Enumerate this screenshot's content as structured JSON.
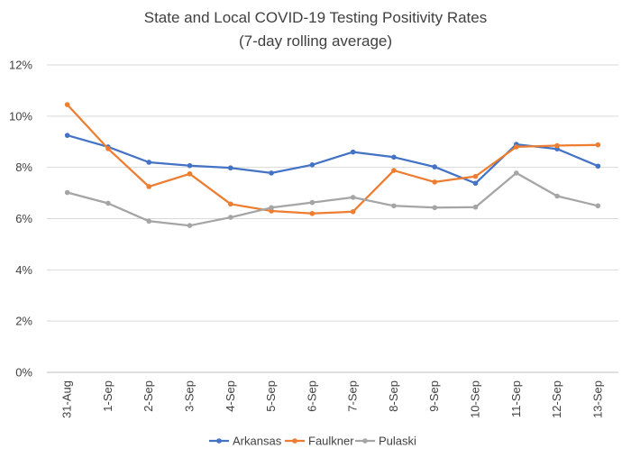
{
  "chart_data": {
    "type": "line",
    "title_lines": [
      "State and Local COVID-19 Testing Positivity Rates",
      "(7-day rolling average)"
    ],
    "xlabel": "",
    "ylabel": "",
    "categories": [
      "31-Aug",
      "1-Sep",
      "2-Sep",
      "3-Sep",
      "4-Sep",
      "5-Sep",
      "6-Sep",
      "7-Sep",
      "8-Sep",
      "9-Sep",
      "10-Sep",
      "11-Sep",
      "12-Sep",
      "13-Sep"
    ],
    "ylim": [
      0,
      12
    ],
    "y_ticks": [
      0,
      2,
      4,
      6,
      8,
      10,
      12
    ],
    "y_tick_labels": [
      "0%",
      "2%",
      "4%",
      "6%",
      "8%",
      "10%",
      "12%"
    ],
    "grid": true,
    "legend_position": "bottom",
    "series": [
      {
        "name": "Arkansas",
        "color": "#4472C4",
        "values": [
          9.25,
          8.8,
          8.2,
          8.07,
          7.98,
          7.78,
          8.1,
          8.6,
          8.4,
          8.02,
          7.38,
          8.9,
          8.72,
          8.05
        ]
      },
      {
        "name": "Faulkner",
        "color": "#ED7D31",
        "values": [
          10.45,
          8.73,
          7.25,
          7.75,
          6.57,
          6.3,
          6.2,
          6.27,
          7.88,
          7.43,
          7.65,
          8.8,
          8.85,
          8.88
        ]
      },
      {
        "name": "Pulaski",
        "color": "#A5A5A5",
        "values": [
          7.02,
          6.6,
          5.9,
          5.73,
          6.05,
          6.43,
          6.63,
          6.83,
          6.5,
          6.43,
          6.45,
          7.78,
          6.88,
          6.5
        ]
      }
    ]
  }
}
